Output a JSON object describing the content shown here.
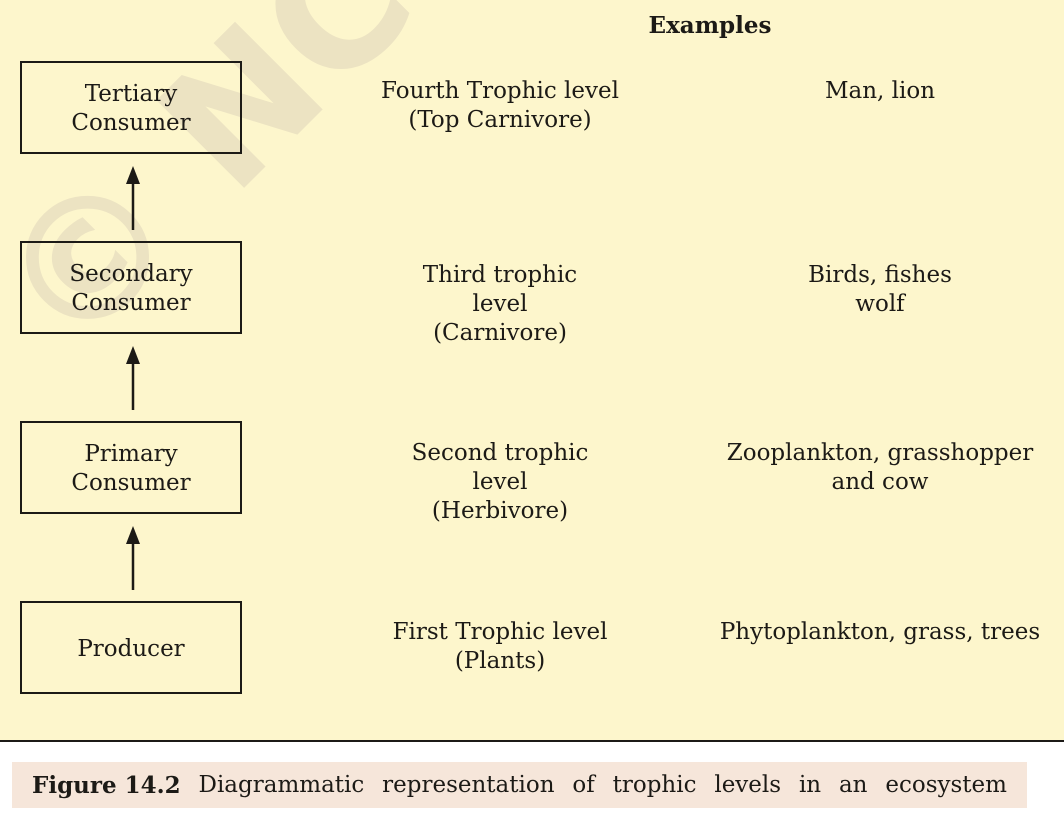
{
  "heading": "Examples",
  "levels": [
    {
      "box": "Tertiary\nConsumer",
      "level": "Fourth Trophic level\n(Top Carnivore)",
      "examples": "Man, lion"
    },
    {
      "box": "Secondary\nConsumer",
      "level": "Third trophic\nlevel\n(Carnivore)",
      "examples": "Birds, fishes\nwolf"
    },
    {
      "box": "Primary\nConsumer",
      "level": "Second trophic\nlevel\n(Herbivore)",
      "examples": "Zooplankton, grasshopper\nand cow"
    },
    {
      "box": "Producer",
      "level": "First Trophic level\n(Plants)",
      "examples": "Phytoplankton, grass, trees"
    }
  ],
  "caption": {
    "label": "Figure 14.2",
    "text": [
      "Diagrammatic",
      "representation",
      "of",
      "trophic",
      "levels",
      "in",
      "an",
      "ecosystem"
    ]
  },
  "watermark": "© NCERT not to be republished"
}
